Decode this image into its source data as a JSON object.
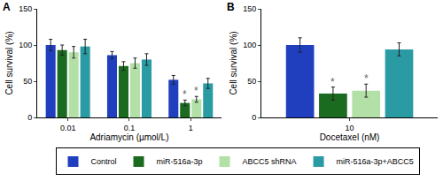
{
  "chart_data": [
    {
      "type": "bar",
      "title": "A",
      "x_label": "Adriamycin (µmol/L)",
      "y_label": "Cell survival (%)",
      "categories": [
        "0.01",
        "0.1",
        "1"
      ],
      "series": [
        {
          "name": "Control",
          "color": "#1f3fbf",
          "values": [
            100,
            86,
            52
          ],
          "errors": [
            8,
            5,
            6
          ]
        },
        {
          "name": "miR-516a-3p",
          "color": "#1a6b1f",
          "values": [
            93,
            71,
            20
          ],
          "errors": [
            7,
            6,
            4
          ]
        },
        {
          "name": "ABCC5 shRNA",
          "color": "#b3e0a6",
          "values": [
            90,
            75,
            25
          ],
          "errors": [
            8,
            7,
            4
          ]
        },
        {
          "name": "miR-516a-3p+ABCC5",
          "color": "#2a9aa3",
          "values": [
            98,
            80,
            47
          ],
          "errors": [
            10,
            8,
            7
          ]
        }
      ],
      "ylim": [
        0,
        150
      ],
      "yticks": [
        0,
        50,
        100,
        150
      ],
      "grid": false,
      "legend": "bottom",
      "annotations": [
        {
          "text": "*",
          "category": "1",
          "series": "miR-516a-3p"
        },
        {
          "text": "*",
          "category": "1",
          "series": "ABCC5 shRNA"
        }
      ]
    },
    {
      "type": "bar",
      "title": "B",
      "x_label": "Docetaxel (nM)",
      "y_label": "Cell survival (%)",
      "categories": [
        "10"
      ],
      "series": [
        {
          "name": "Control",
          "color": "#1f3fbf",
          "values": [
            100
          ],
          "errors": [
            10
          ]
        },
        {
          "name": "miR-516a-3p",
          "color": "#1a6b1f",
          "values": [
            33
          ],
          "errors": [
            9
          ]
        },
        {
          "name": "ABCC5 shRNA",
          "color": "#b3e0a6",
          "values": [
            37
          ],
          "errors": [
            9
          ]
        },
        {
          "name": "miR-516a-3p+ABCC5",
          "color": "#2a9aa3",
          "values": [
            94
          ],
          "errors": [
            9
          ]
        }
      ],
      "ylim": [
        0,
        150
      ],
      "yticks": [
        0,
        50,
        100,
        150
      ],
      "grid": false,
      "annotations": [
        {
          "text": "*",
          "category": "10",
          "series": "miR-516a-3p"
        },
        {
          "text": "*",
          "category": "10",
          "series": "ABCC5 shRNA"
        }
      ]
    }
  ]
}
